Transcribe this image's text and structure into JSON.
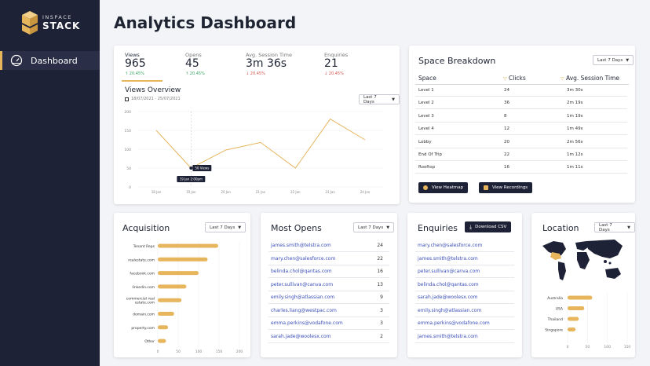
{
  "brand": {
    "line1": "INSPACE",
    "line2": "STACK"
  },
  "nav": {
    "dashboard": "Dashboard"
  },
  "page_title": "Analytics Dashboard",
  "kpis": [
    {
      "label": "Views",
      "value": "965",
      "change": "20.45%",
      "dir": "up"
    },
    {
      "label": "Opens",
      "value": "45",
      "change": "20.45%",
      "dir": "up"
    },
    {
      "label": "Avg. Session Time",
      "value": "3m 36s",
      "change": "20.45%",
      "dir": "down"
    },
    {
      "label": "Enquiries",
      "value": "21",
      "change": "20.45%",
      "dir": "down"
    }
  ],
  "views_overview": {
    "title": "Views Overview",
    "date_range": "18/07/2021 - 25/07/2021",
    "dropdown": "Last 7 Days",
    "tooltip_value": "50 Views",
    "tooltip_date": "19 Jan 2:00pm"
  },
  "chart_data": {
    "type": "line",
    "ylim": [
      0,
      200
    ],
    "y_ticks": [
      "200",
      "150",
      "100",
      "50",
      "0"
    ],
    "x": [
      "18 Jan",
      "19 Jan",
      "20 Jan",
      "21 Jan",
      "22 Jan",
      "23 Jan",
      "24 Jan"
    ],
    "values": [
      150,
      50,
      98,
      118,
      50,
      180,
      125
    ],
    "color": "#e6b55c"
  },
  "space_breakdown": {
    "title": "Space Breakdown",
    "dropdown": "Last 7 Days",
    "columns": [
      "Space",
      "Clicks",
      "Avg. Session Time"
    ],
    "rows": [
      [
        "Level 1",
        "24",
        "3m 30s"
      ],
      [
        "Level 2",
        "36",
        "2m 19s"
      ],
      [
        "Level 3",
        "8",
        "1m 19s"
      ],
      [
        "Level 4",
        "12",
        "1m 49s"
      ],
      [
        "Lobby",
        "20",
        "2m 56s"
      ],
      [
        "End Of Trip",
        "22",
        "1m 12s"
      ],
      [
        "Rooftop",
        "16",
        "1m 11s"
      ]
    ],
    "btn_heatmap": "View Heatmap",
    "btn_recordings": "View Recordings"
  },
  "acquisition": {
    "title": "Acquisition",
    "dropdown": "Last 7 Days",
    "categories": [
      "Tenant Reps",
      "realestate.com",
      "facebook.com",
      "linkedin.com",
      "commercial real estate.com",
      "domain.com",
      "property.com",
      "Other"
    ],
    "values": [
      148,
      122,
      100,
      70,
      58,
      40,
      25,
      20
    ],
    "x_ticks": [
      "0",
      "50",
      "100",
      "150",
      "200"
    ],
    "xlim": [
      0,
      200
    ]
  },
  "most_opens": {
    "title": "Most Opens",
    "dropdown": "Last 7 Days",
    "rows": [
      [
        "james.smith@telstra.com",
        "24"
      ],
      [
        "mary.chen@salesforce.com",
        "22"
      ],
      [
        "belinda.chol@qantas.com",
        "16"
      ],
      [
        "peter.sullivan@canva.com",
        "13"
      ],
      [
        "emily.singh@atlassian.com",
        "9"
      ],
      [
        "charles.liang@westpac.com",
        "3"
      ],
      [
        "emma.perkins@vodafone.com",
        "3"
      ],
      [
        "sarah.jade@woolesx.com",
        "2"
      ]
    ]
  },
  "enquiries": {
    "title": "Enquiries",
    "btn": "Download CSV",
    "rows": [
      "mary.chen@salesforce.com",
      "james.smith@telstra.com",
      "peter.sullivan@canva.com",
      "belinda.chol@qantas.com",
      "sarah.jade@woolesx.com",
      "emily.singh@atlassian.com",
      "emma.perkins@vodafone.com",
      "james.smith@telstra.com"
    ]
  },
  "location": {
    "title": "Location",
    "dropdown": "Last 7 Days",
    "categories": [
      "Australia",
      "USA",
      "Thailand",
      "Singapore"
    ],
    "values": [
      62,
      42,
      28,
      20
    ],
    "x_ticks": [
      "0",
      "50",
      "100",
      "150"
    ],
    "xlim": [
      0,
      150
    ]
  }
}
